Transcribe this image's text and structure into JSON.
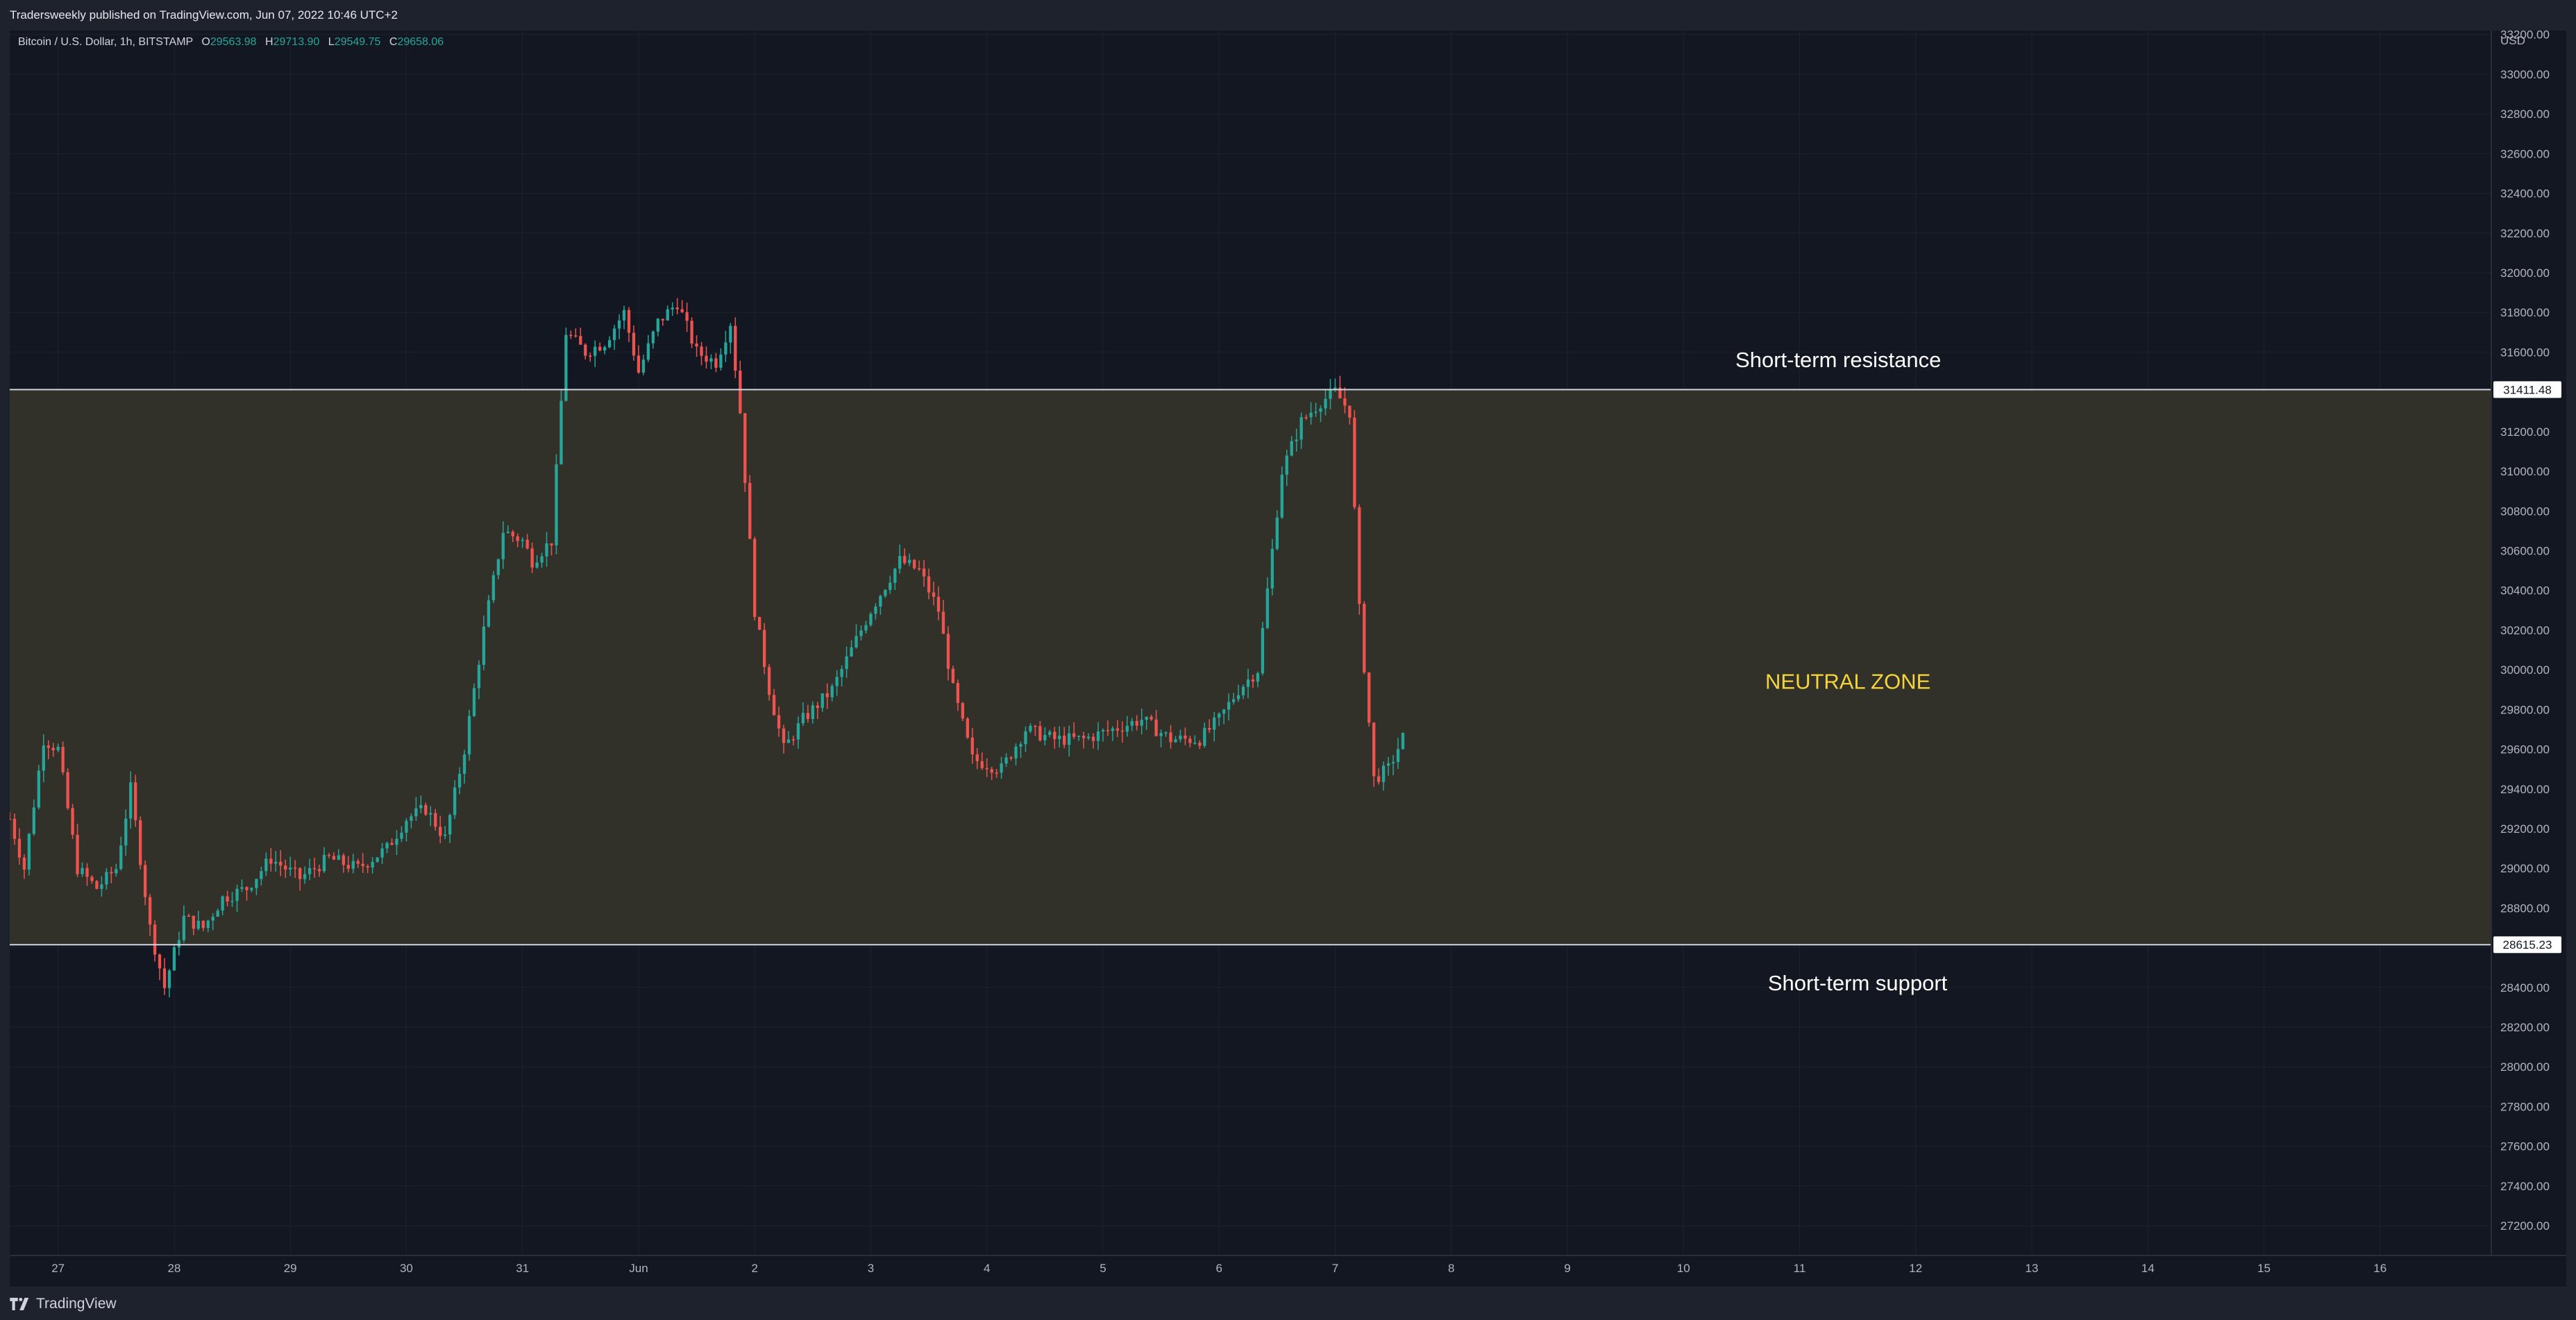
{
  "header": {
    "publish_text": "Tradersweekly published on TradingView.com, Jun 07, 2022 10:46 UTC+2"
  },
  "footer": {
    "brand": "TradingView"
  },
  "legend": {
    "symbol": "Bitcoin / U.S. Dollar, 1h, BITSTAMP",
    "o_label": "O",
    "o_value": "29563.98",
    "h_label": "H",
    "h_value": "29713.90",
    "l_label": "L",
    "l_value": "29549.75",
    "c_label": "C",
    "c_value": "29658.06"
  },
  "colors": {
    "up": "#26a69a",
    "down": "#ef5350",
    "zone_fill": "#33332a",
    "zone_label": "#f5d33d",
    "level_line": "#d1d4dc",
    "background": "#131722"
  },
  "chart_data": {
    "type": "candlestick",
    "currency_label": "USD",
    "y_range": [
      27050,
      33220
    ],
    "x_range": [
      "2022-05-26T14:00",
      "2022-06-16T23:00"
    ],
    "y_ticks": [
      "27200.00",
      "27400.00",
      "27600.00",
      "27800.00",
      "28000.00",
      "28200.00",
      "28400.00",
      "28600.00",
      "28800.00",
      "29000.00",
      "29200.00",
      "29400.00",
      "29600.00",
      "29800.00",
      "30000.00",
      "30200.00",
      "30400.00",
      "30600.00",
      "30800.00",
      "31000.00",
      "31200.00",
      "31400.00",
      "31600.00",
      "31800.00",
      "32000.00",
      "32200.00",
      "32400.00",
      "32600.00",
      "32800.00",
      "33000.00",
      "33200.00"
    ],
    "x_ticks": [
      {
        "label": "27",
        "date": "2022-05-27"
      },
      {
        "label": "28",
        "date": "2022-05-28"
      },
      {
        "label": "29",
        "date": "2022-05-29"
      },
      {
        "label": "30",
        "date": "2022-05-30"
      },
      {
        "label": "31",
        "date": "2022-05-31"
      },
      {
        "label": "Jun",
        "date": "2022-06-01"
      },
      {
        "label": "2",
        "date": "2022-06-02"
      },
      {
        "label": "3",
        "date": "2022-06-03"
      },
      {
        "label": "4",
        "date": "2022-06-04"
      },
      {
        "label": "5",
        "date": "2022-06-05"
      },
      {
        "label": "6",
        "date": "2022-06-06"
      },
      {
        "label": "7",
        "date": "2022-06-07"
      },
      {
        "label": "8",
        "date": "2022-06-08"
      },
      {
        "label": "9",
        "date": "2022-06-09"
      },
      {
        "label": "10",
        "date": "2022-06-10"
      },
      {
        "label": "11",
        "date": "2022-06-11"
      },
      {
        "label": "12",
        "date": "2022-06-12"
      },
      {
        "label": "13",
        "date": "2022-06-13"
      },
      {
        "label": "14",
        "date": "2022-06-14"
      },
      {
        "label": "15",
        "date": "2022-06-15"
      },
      {
        "label": "16",
        "date": "2022-06-16"
      }
    ],
    "levels": [
      {
        "label": "31411.48",
        "value": 31411.48
      },
      {
        "label": "28615.23",
        "value": 28615.23
      }
    ],
    "zone": {
      "from": 28615.23,
      "to": 31411.48
    },
    "annotations": [
      {
        "text": "Short-term resistance",
        "date": "2022-06-11T08:00",
        "value": 31560
      },
      {
        "text": "NEUTRAL ZONE",
        "date": "2022-06-11T10:00",
        "value": 29940
      },
      {
        "text": "Short-term support",
        "date": "2022-06-11T12:00",
        "value": 28420
      }
    ],
    "price_path": [
      [
        "2022-05-26T14:00",
        29250
      ],
      [
        "2022-05-26T17:00",
        29000
      ],
      [
        "2022-05-26T21:00",
        29650
      ],
      [
        "2022-05-27T00:00",
        29600
      ],
      [
        "2022-05-27T04:00",
        29000
      ],
      [
        "2022-05-27T08:00",
        28900
      ],
      [
        "2022-05-27T12:00",
        29000
      ],
      [
        "2022-05-27T15:00",
        29400
      ],
      [
        "2022-05-27T19:00",
        28700
      ],
      [
        "2022-05-27T22:00",
        28400
      ],
      [
        "2022-05-28T02:00",
        28750
      ],
      [
        "2022-05-28T06:00",
        28700
      ],
      [
        "2022-05-28T10:00",
        28850
      ],
      [
        "2022-05-28T15:00",
        28900
      ],
      [
        "2022-05-28T20:00",
        29050
      ],
      [
        "2022-05-29T02:00",
        28950
      ],
      [
        "2022-05-29T08:00",
        29050
      ],
      [
        "2022-05-29T14:00",
        29000
      ],
      [
        "2022-05-29T20:00",
        29100
      ],
      [
        "2022-05-30T00:00",
        29250
      ],
      [
        "2022-05-30T04:00",
        29300
      ],
      [
        "2022-05-30T08:00",
        29150
      ],
      [
        "2022-05-30T12:00",
        29600
      ],
      [
        "2022-05-30T16:00",
        30200
      ],
      [
        "2022-05-30T20:00",
        30700
      ],
      [
        "2022-05-31T00:00",
        30650
      ],
      [
        "2022-05-31T02:00",
        30550
      ],
      [
        "2022-05-31T06:00",
        30650
      ],
      [
        "2022-05-31T09:00",
        31700
      ],
      [
        "2022-05-31T13:00",
        31600
      ],
      [
        "2022-05-31T17:00",
        31650
      ],
      [
        "2022-05-31T21:00",
        31800
      ],
      [
        "2022-06-01T00:00",
        31500
      ],
      [
        "2022-06-01T04:00",
        31750
      ],
      [
        "2022-06-01T08:00",
        31850
      ],
      [
        "2022-06-01T12:00",
        31600
      ],
      [
        "2022-06-01T16:00",
        31550
      ],
      [
        "2022-06-01T19:00",
        31750
      ],
      [
        "2022-06-01T21:00",
        31300
      ],
      [
        "2022-06-02T00:00",
        30300
      ],
      [
        "2022-06-02T03:00",
        29900
      ],
      [
        "2022-06-02T06:00",
        29600
      ],
      [
        "2022-06-02T10:00",
        29750
      ],
      [
        "2022-06-02T16:00",
        29900
      ],
      [
        "2022-06-02T20:00",
        30100
      ],
      [
        "2022-06-03T00:00",
        30300
      ],
      [
        "2022-06-03T06:00",
        30550
      ],
      [
        "2022-06-03T10:00",
        30500
      ],
      [
        "2022-06-03T14:00",
        30300
      ],
      [
        "2022-06-03T17:00",
        29900
      ],
      [
        "2022-06-03T21:00",
        29550
      ],
      [
        "2022-06-04T03:00",
        29500
      ],
      [
        "2022-06-04T08:00",
        29700
      ],
      [
        "2022-06-04T14:00",
        29650
      ],
      [
        "2022-06-04T20:00",
        29650
      ],
      [
        "2022-06-05T02:00",
        29700
      ],
      [
        "2022-06-05T08:00",
        29750
      ],
      [
        "2022-06-05T14:00",
        29650
      ],
      [
        "2022-06-05T20:00",
        29650
      ],
      [
        "2022-06-06T00:00",
        29750
      ],
      [
        "2022-06-06T04:00",
        29900
      ],
      [
        "2022-06-06T08:00",
        30000
      ],
      [
        "2022-06-06T10:00",
        30400
      ],
      [
        "2022-06-06T13:00",
        31000
      ],
      [
        "2022-06-06T17:00",
        31250
      ],
      [
        "2022-06-06T21:00",
        31350
      ],
      [
        "2022-06-07T00:00",
        31400
      ],
      [
        "2022-06-07T03:00",
        31300
      ],
      [
        "2022-06-07T05:00",
        30300
      ],
      [
        "2022-06-07T08:00",
        29450
      ],
      [
        "2022-06-07T11:00",
        29500
      ],
      [
        "2022-06-07T14:00",
        29658
      ]
    ]
  }
}
